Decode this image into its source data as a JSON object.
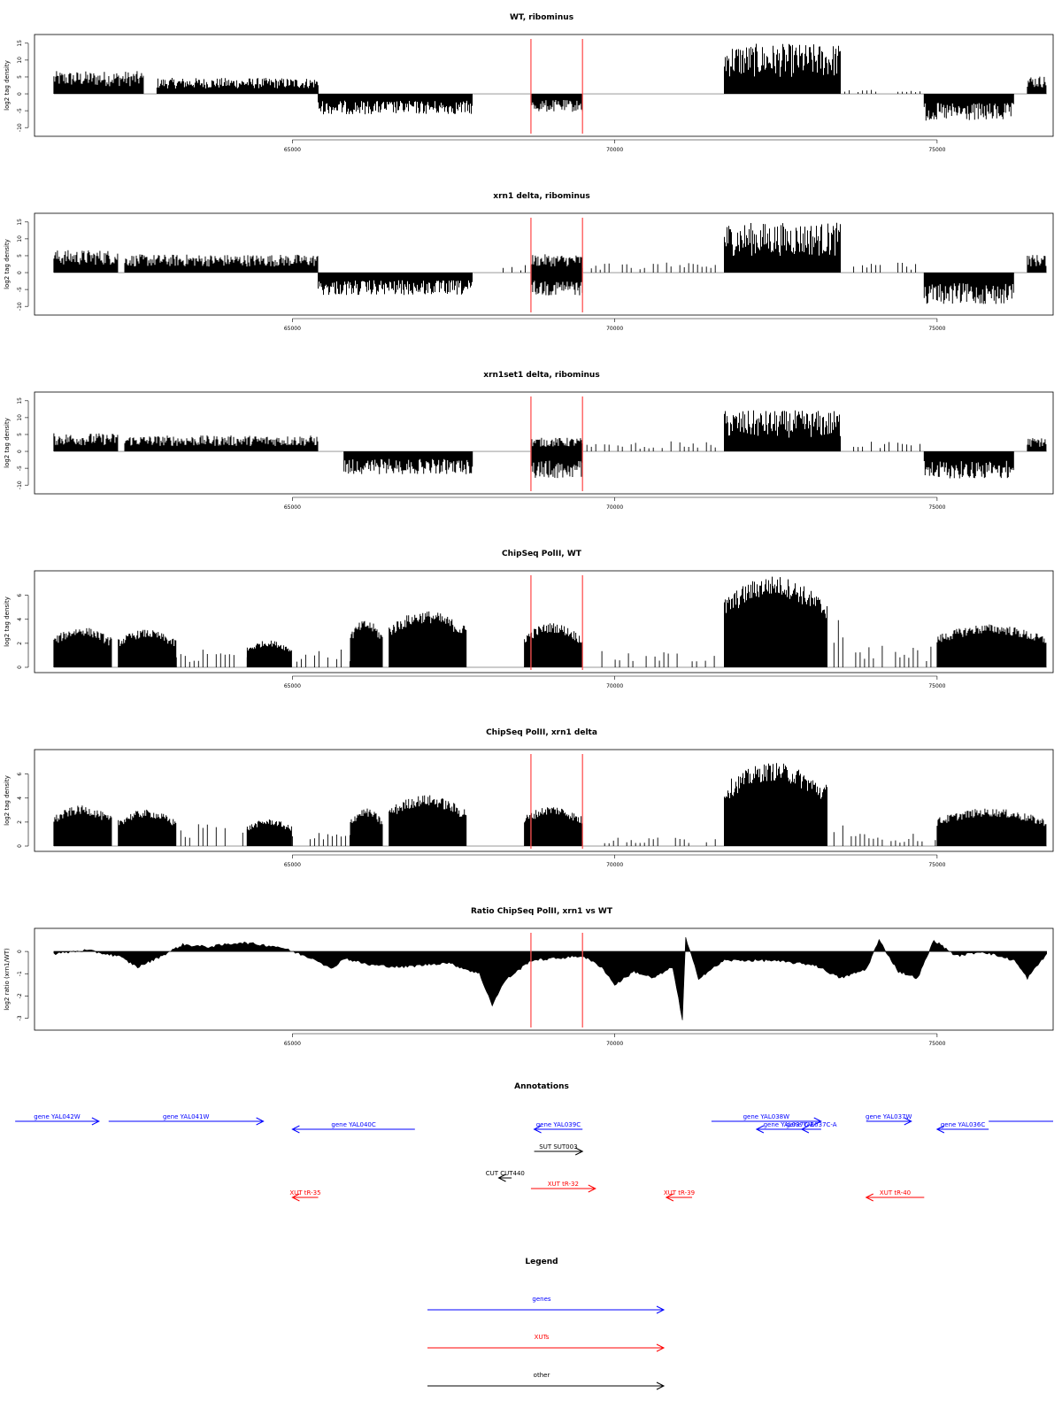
{
  "panels": [
    {
      "title": "WT, ribominus",
      "ylabel": "log2 tag density",
      "yticks": [
        -10,
        -5,
        0,
        5,
        10,
        15
      ],
      "ylim": [
        -11,
        16
      ]
    },
    {
      "title": "xrn1 delta, ribominus",
      "ylabel": "log2 tag density",
      "yticks": [
        -10,
        -5,
        0,
        5,
        10,
        15
      ],
      "ylim": [
        -11,
        16
      ]
    },
    {
      "title": "xrn1set1 delta, ribominus",
      "ylabel": "log2 tag density",
      "yticks": [
        -10,
        -5,
        0,
        5,
        10,
        15
      ],
      "ylim": [
        -11,
        16
      ]
    },
    {
      "title": "ChipSeq PolII, WT",
      "ylabel": "log2 tag density",
      "yticks": [
        0,
        2,
        4,
        6
      ],
      "ylim": [
        0,
        7.6
      ]
    },
    {
      "title": "ChipSeq PolII, xrn1 delta",
      "ylabel": "log2 tag density",
      "yticks": [
        0,
        2,
        4,
        6
      ],
      "ylim": [
        0,
        7.6
      ]
    },
    {
      "title": "Ratio ChipSeq PolII, xrn1 vs WT",
      "ylabel": "log2 ratio (xrn1/WT)",
      "yticks": [
        -3,
        -2,
        -1,
        0
      ],
      "ylim": [
        -3.3,
        0.8
      ]
    }
  ],
  "chart_data": {
    "type": "bar",
    "x_label": "",
    "xlim": [
      61000,
      76800
    ],
    "xticks": [
      65000,
      70000,
      75000
    ],
    "highlight_x": [
      68700,
      69500
    ],
    "highlight_color": "#ff5555",
    "tracks": [
      {
        "name": "WT, ribominus",
        "segments": [
          {
            "from": 61300,
            "to": 62700,
            "level": 5,
            "style": "rough"
          },
          {
            "from": 62900,
            "to": 65400,
            "level": 3.5,
            "style": "rough"
          },
          {
            "from": 65400,
            "to": 67800,
            "level": -4.5,
            "style": "rough"
          },
          {
            "from": 68700,
            "to": 69500,
            "level": -4,
            "style": "rough"
          },
          {
            "from": 71700,
            "to": 73500,
            "level": 11,
            "style": "rough"
          },
          {
            "from": 73500,
            "to": 74800,
            "level": 0.8,
            "style": "sparse"
          },
          {
            "from": 74800,
            "to": 76200,
            "level": -6,
            "style": "rough"
          },
          {
            "from": 76400,
            "to": 76700,
            "level": 4,
            "style": "rough"
          }
        ]
      },
      {
        "name": "xrn1 delta, ribominus",
        "segments": [
          {
            "from": 61300,
            "to": 62300,
            "level": 5,
            "style": "rough"
          },
          {
            "from": 62400,
            "to": 65400,
            "level": 4,
            "style": "rough"
          },
          {
            "from": 65400,
            "to": 67800,
            "level": -5,
            "style": "rough"
          },
          {
            "from": 68200,
            "to": 68700,
            "level": 1.5,
            "style": "sparse"
          },
          {
            "from": 68700,
            "to": 69500,
            "level": -5,
            "style": "rough"
          },
          {
            "from": 68700,
            "to": 69500,
            "level": 4,
            "style": "rough"
          },
          {
            "from": 69500,
            "to": 71600,
            "level": 2,
            "style": "sparse"
          },
          {
            "from": 71700,
            "to": 73500,
            "level": 11,
            "style": "rough"
          },
          {
            "from": 73500,
            "to": 74800,
            "level": 2,
            "style": "sparse"
          },
          {
            "from": 74800,
            "to": 76200,
            "level": -7,
            "style": "rough"
          },
          {
            "from": 76400,
            "to": 76700,
            "level": 4,
            "style": "rough"
          }
        ]
      },
      {
        "name": "xrn1set1 delta, ribominus",
        "segments": [
          {
            "from": 61300,
            "to": 62300,
            "level": 4,
            "style": "rough"
          },
          {
            "from": 62400,
            "to": 65400,
            "level": 3.5,
            "style": "rough"
          },
          {
            "from": 65800,
            "to": 67800,
            "level": -5,
            "style": "rough"
          },
          {
            "from": 68700,
            "to": 69500,
            "level": -6,
            "style": "rough"
          },
          {
            "from": 68700,
            "to": 69500,
            "level": 3,
            "style": "rough"
          },
          {
            "from": 69500,
            "to": 71600,
            "level": 2,
            "style": "sparse"
          },
          {
            "from": 71700,
            "to": 73500,
            "level": 9,
            "style": "rough"
          },
          {
            "from": 73500,
            "to": 74800,
            "level": 2,
            "style": "sparse"
          },
          {
            "from": 74800,
            "to": 76200,
            "level": -6,
            "style": "rough"
          },
          {
            "from": 76400,
            "to": 76700,
            "level": 3,
            "style": "rough"
          }
        ]
      },
      {
        "name": "ChipSeq PolII, WT",
        "segments": [
          {
            "from": 61300,
            "to": 62200,
            "level": 3,
            "style": "dense"
          },
          {
            "from": 62300,
            "to": 63200,
            "level": 2.8,
            "style": "dense"
          },
          {
            "from": 63200,
            "to": 64300,
            "level": 1,
            "style": "sparse"
          },
          {
            "from": 64300,
            "to": 65000,
            "level": 2,
            "style": "dense"
          },
          {
            "from": 65000,
            "to": 65900,
            "level": 1,
            "style": "sparse"
          },
          {
            "from": 65900,
            "to": 66400,
            "level": 3.5,
            "style": "dense"
          },
          {
            "from": 66500,
            "to": 67700,
            "level": 4.2,
            "style": "dense"
          },
          {
            "from": 68600,
            "to": 69500,
            "level": 3.3,
            "style": "dense"
          },
          {
            "from": 69800,
            "to": 71000,
            "level": 0.9,
            "style": "sparse"
          },
          {
            "from": 71200,
            "to": 71600,
            "level": 1,
            "style": "sparse"
          },
          {
            "from": 71700,
            "to": 73300,
            "level": 6.8,
            "style": "dense"
          },
          {
            "from": 73400,
            "to": 73600,
            "level": 3,
            "style": "sparse"
          },
          {
            "from": 73600,
            "to": 75000,
            "level": 1.2,
            "style": "sparse"
          },
          {
            "from": 75000,
            "to": 76700,
            "level": 3.2,
            "style": "dense"
          }
        ]
      },
      {
        "name": "ChipSeq PolII, xrn1 delta",
        "segments": [
          {
            "from": 61300,
            "to": 62200,
            "level": 3,
            "style": "dense"
          },
          {
            "from": 62300,
            "to": 63200,
            "level": 2.7,
            "style": "dense"
          },
          {
            "from": 63200,
            "to": 64300,
            "level": 1.3,
            "style": "sparse"
          },
          {
            "from": 64300,
            "to": 65000,
            "level": 2,
            "style": "dense"
          },
          {
            "from": 65000,
            "to": 65900,
            "level": 0.8,
            "style": "sparse"
          },
          {
            "from": 65900,
            "to": 66400,
            "level": 2.8,
            "style": "dense"
          },
          {
            "from": 66500,
            "to": 67700,
            "level": 3.8,
            "style": "dense"
          },
          {
            "from": 68600,
            "to": 69500,
            "level": 3,
            "style": "dense"
          },
          {
            "from": 69500,
            "to": 71600,
            "level": 0.5,
            "style": "sparse"
          },
          {
            "from": 71700,
            "to": 73300,
            "level": 6.2,
            "style": "dense"
          },
          {
            "from": 73400,
            "to": 73600,
            "level": 2.5,
            "style": "sparse"
          },
          {
            "from": 73600,
            "to": 75000,
            "level": 0.7,
            "style": "sparse"
          },
          {
            "from": 75000,
            "to": 76700,
            "level": 2.8,
            "style": "dense"
          }
        ]
      },
      {
        "name": "Ratio ChipSeq PolII, xrn1 vs WT",
        "curve": [
          [
            61300,
            -0.1
          ],
          [
            61800,
            0.05
          ],
          [
            62300,
            -0.2
          ],
          [
            62600,
            -0.7
          ],
          [
            62900,
            -0.3
          ],
          [
            63300,
            0.3
          ],
          [
            63700,
            0.2
          ],
          [
            64200,
            0.4
          ],
          [
            64800,
            0.2
          ],
          [
            65400,
            -0.4
          ],
          [
            65600,
            -0.8
          ],
          [
            65800,
            -0.3
          ],
          [
            66200,
            -0.6
          ],
          [
            66700,
            -0.7
          ],
          [
            67400,
            -0.5
          ],
          [
            67900,
            -1.0
          ],
          [
            68100,
            -2.4
          ],
          [
            68300,
            -1.3
          ],
          [
            68700,
            -0.4
          ],
          [
            69500,
            -0.2
          ],
          [
            69800,
            -0.7
          ],
          [
            70000,
            -1.5
          ],
          [
            70300,
            -0.9
          ],
          [
            70600,
            -1.2
          ],
          [
            70900,
            -0.7
          ],
          [
            71050,
            -3.1
          ],
          [
            71100,
            0.6
          ],
          [
            71300,
            -1.2
          ],
          [
            71700,
            -0.4
          ],
          [
            72400,
            -0.4
          ],
          [
            73100,
            -0.6
          ],
          [
            73500,
            -1.2
          ],
          [
            73900,
            -0.8
          ],
          [
            74100,
            0.5
          ],
          [
            74400,
            -0.9
          ],
          [
            74700,
            -1.2
          ],
          [
            74950,
            0.5
          ],
          [
            75300,
            -0.2
          ],
          [
            75700,
            0.0
          ],
          [
            76200,
            -0.4
          ],
          [
            76400,
            -1.2
          ],
          [
            76700,
            -0.1
          ]
        ]
      }
    ]
  },
  "annotations": {
    "title": "Annotations",
    "items": [
      {
        "label": "gene YAL042W",
        "type": "gene",
        "dir": "right",
        "from": 60700,
        "to": 62000,
        "row": 0
      },
      {
        "label": "gene YAL041W",
        "type": "gene",
        "dir": "right",
        "from": 62150,
        "to": 64550,
        "row": 0
      },
      {
        "label": "",
        "type": "gene",
        "dir": "none",
        "from": 75800,
        "to": 76800,
        "row": 0
      },
      {
        "label": "gene YAL040C",
        "type": "gene",
        "dir": "left",
        "from": 65000,
        "to": 66900,
        "row": 1
      },
      {
        "label": "gene YAL039C",
        "type": "gene",
        "dir": "left",
        "from": 68750,
        "to": 69500,
        "row": 1
      },
      {
        "label": "gene YAL038W",
        "type": "gene",
        "dir": "right",
        "from": 71500,
        "to": 73200,
        "row": 0
      },
      {
        "label": "gene YAL037C-B",
        "type": "gene",
        "dir": "left",
        "from": 72200,
        "to": 73200,
        "row": 1
      },
      {
        "label": "gene YAL037C-A",
        "type": "gene",
        "dir": "left",
        "from": 72900,
        "to": 73200,
        "row": 1
      },
      {
        "label": "gene YAL037W",
        "type": "gene",
        "dir": "right",
        "from": 73900,
        "to": 74600,
        "row": 0
      },
      {
        "label": "gene YAL036C",
        "type": "gene",
        "dir": "left",
        "from": 75000,
        "to": 75800,
        "row": 1
      },
      {
        "label": "SUT SUT003",
        "type": "other",
        "dir": "right",
        "from": 68750,
        "to": 69500,
        "row": 2
      },
      {
        "label": "CUT CUT440",
        "type": "other",
        "dir": "left",
        "from": 68200,
        "to": 68400,
        "row": 3
      },
      {
        "label": "XUT tR-32",
        "type": "xut",
        "dir": "right",
        "from": 68700,
        "to": 69700,
        "row": 4
      },
      {
        "label": "XUT tR-35",
        "type": "xut",
        "dir": "left",
        "from": 65000,
        "to": 65400,
        "row": 5
      },
      {
        "label": "XUT tR-39",
        "type": "xut",
        "dir": "left",
        "from": 70800,
        "to": 71200,
        "row": 5
      },
      {
        "label": "XUT tR-40",
        "type": "xut",
        "dir": "left",
        "from": 73900,
        "to": 74800,
        "row": 5
      }
    ]
  },
  "legend": {
    "title": "Legend",
    "entries": [
      {
        "label": "genes",
        "color": "#0000ff"
      },
      {
        "label": "XUTs",
        "color": "#ff0000"
      },
      {
        "label": "other",
        "color": "#000000"
      }
    ]
  },
  "colors": {
    "gene": "#0000ff",
    "xut": "#ff0000",
    "other": "#000000",
    "ink": "#000000"
  }
}
